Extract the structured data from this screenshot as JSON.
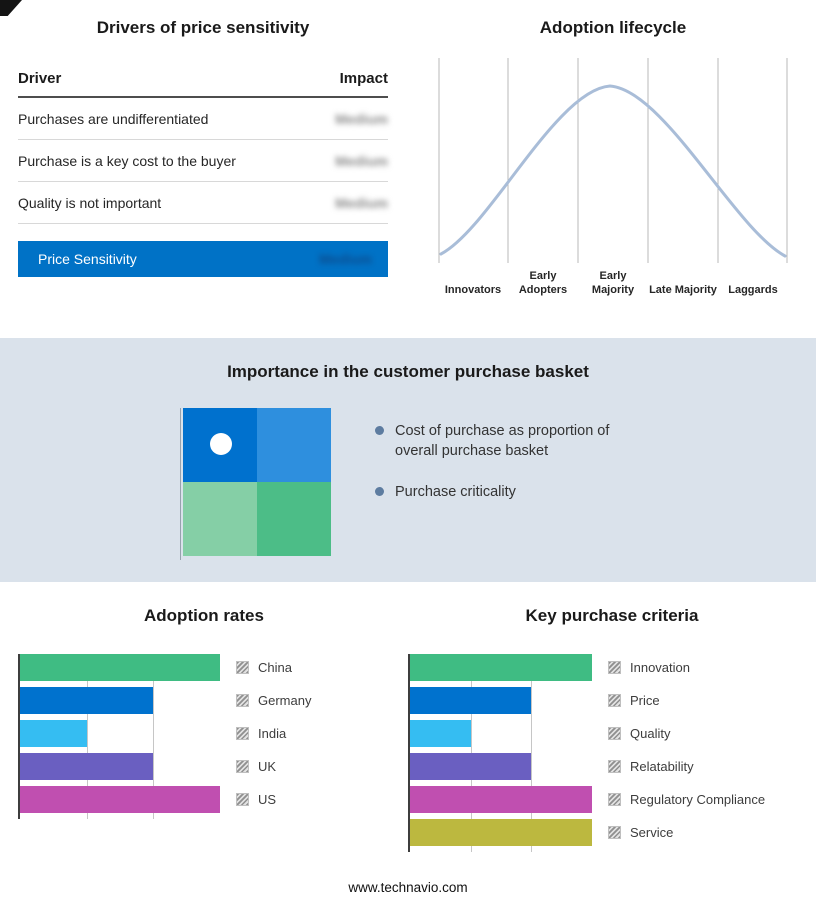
{
  "drivers": {
    "title": "Drivers of price sensitivity",
    "columns": {
      "driver": "Driver",
      "impact": "Impact"
    },
    "rows": [
      {
        "driver": "Purchases are undifferentiated",
        "impact": "Medium"
      },
      {
        "driver": "Purchase is a key cost to the buyer",
        "impact": "Medium"
      },
      {
        "driver": "Quality is not important",
        "impact": "Medium"
      }
    ],
    "summary": {
      "label": "Price Sensitivity",
      "impact": "Medium"
    },
    "accent_color": "#0072C6"
  },
  "lifecycle": {
    "title": "Adoption lifecycle",
    "stages": [
      "Innovators",
      "Early Adopters",
      "Early Majority",
      "Late Majority",
      "Laggards"
    ],
    "curve_color": "#a9bdd8"
  },
  "basket": {
    "title": "Importance in the customer purchase basket",
    "bullets": [
      "Cost of purchase as proportion of overall purchase basket",
      "Purchase criticality"
    ],
    "quadrant_colors": {
      "top_left": "#0071CE",
      "top_right": "#2E8FDE",
      "bottom_left": "#85CFA6",
      "bottom_right": "#4CBD87"
    }
  },
  "chart_data": [
    {
      "type": "bar",
      "title": "Adoption rates",
      "orientation": "horizontal",
      "categories": [
        "China",
        "Germany",
        "India",
        "UK",
        "US"
      ],
      "values": [
        3,
        2,
        1,
        2,
        3
      ],
      "colors": [
        "#3FBC83",
        "#0072CE",
        "#35BDF2",
        "#6A5FC1",
        "#C04FB0"
      ],
      "xlim": [
        0,
        3
      ],
      "gridlines": [
        1,
        2
      ],
      "grid": true,
      "legend_position": "right"
    },
    {
      "type": "bar",
      "title": "Key purchase criteria",
      "orientation": "horizontal",
      "categories": [
        "Innovation",
        "Price",
        "Quality",
        "Relatability",
        "Regulatory Compliance",
        "Service"
      ],
      "values": [
        3,
        2,
        1,
        2,
        3,
        3
      ],
      "colors": [
        "#3FBC83",
        "#0072CE",
        "#35BDF2",
        "#6A5FC1",
        "#C04FB0",
        "#BCB83F"
      ],
      "xlim": [
        0,
        3
      ],
      "gridlines": [
        1,
        2
      ],
      "grid": true,
      "legend_position": "right"
    }
  ],
  "footer": "www.technavio.com"
}
